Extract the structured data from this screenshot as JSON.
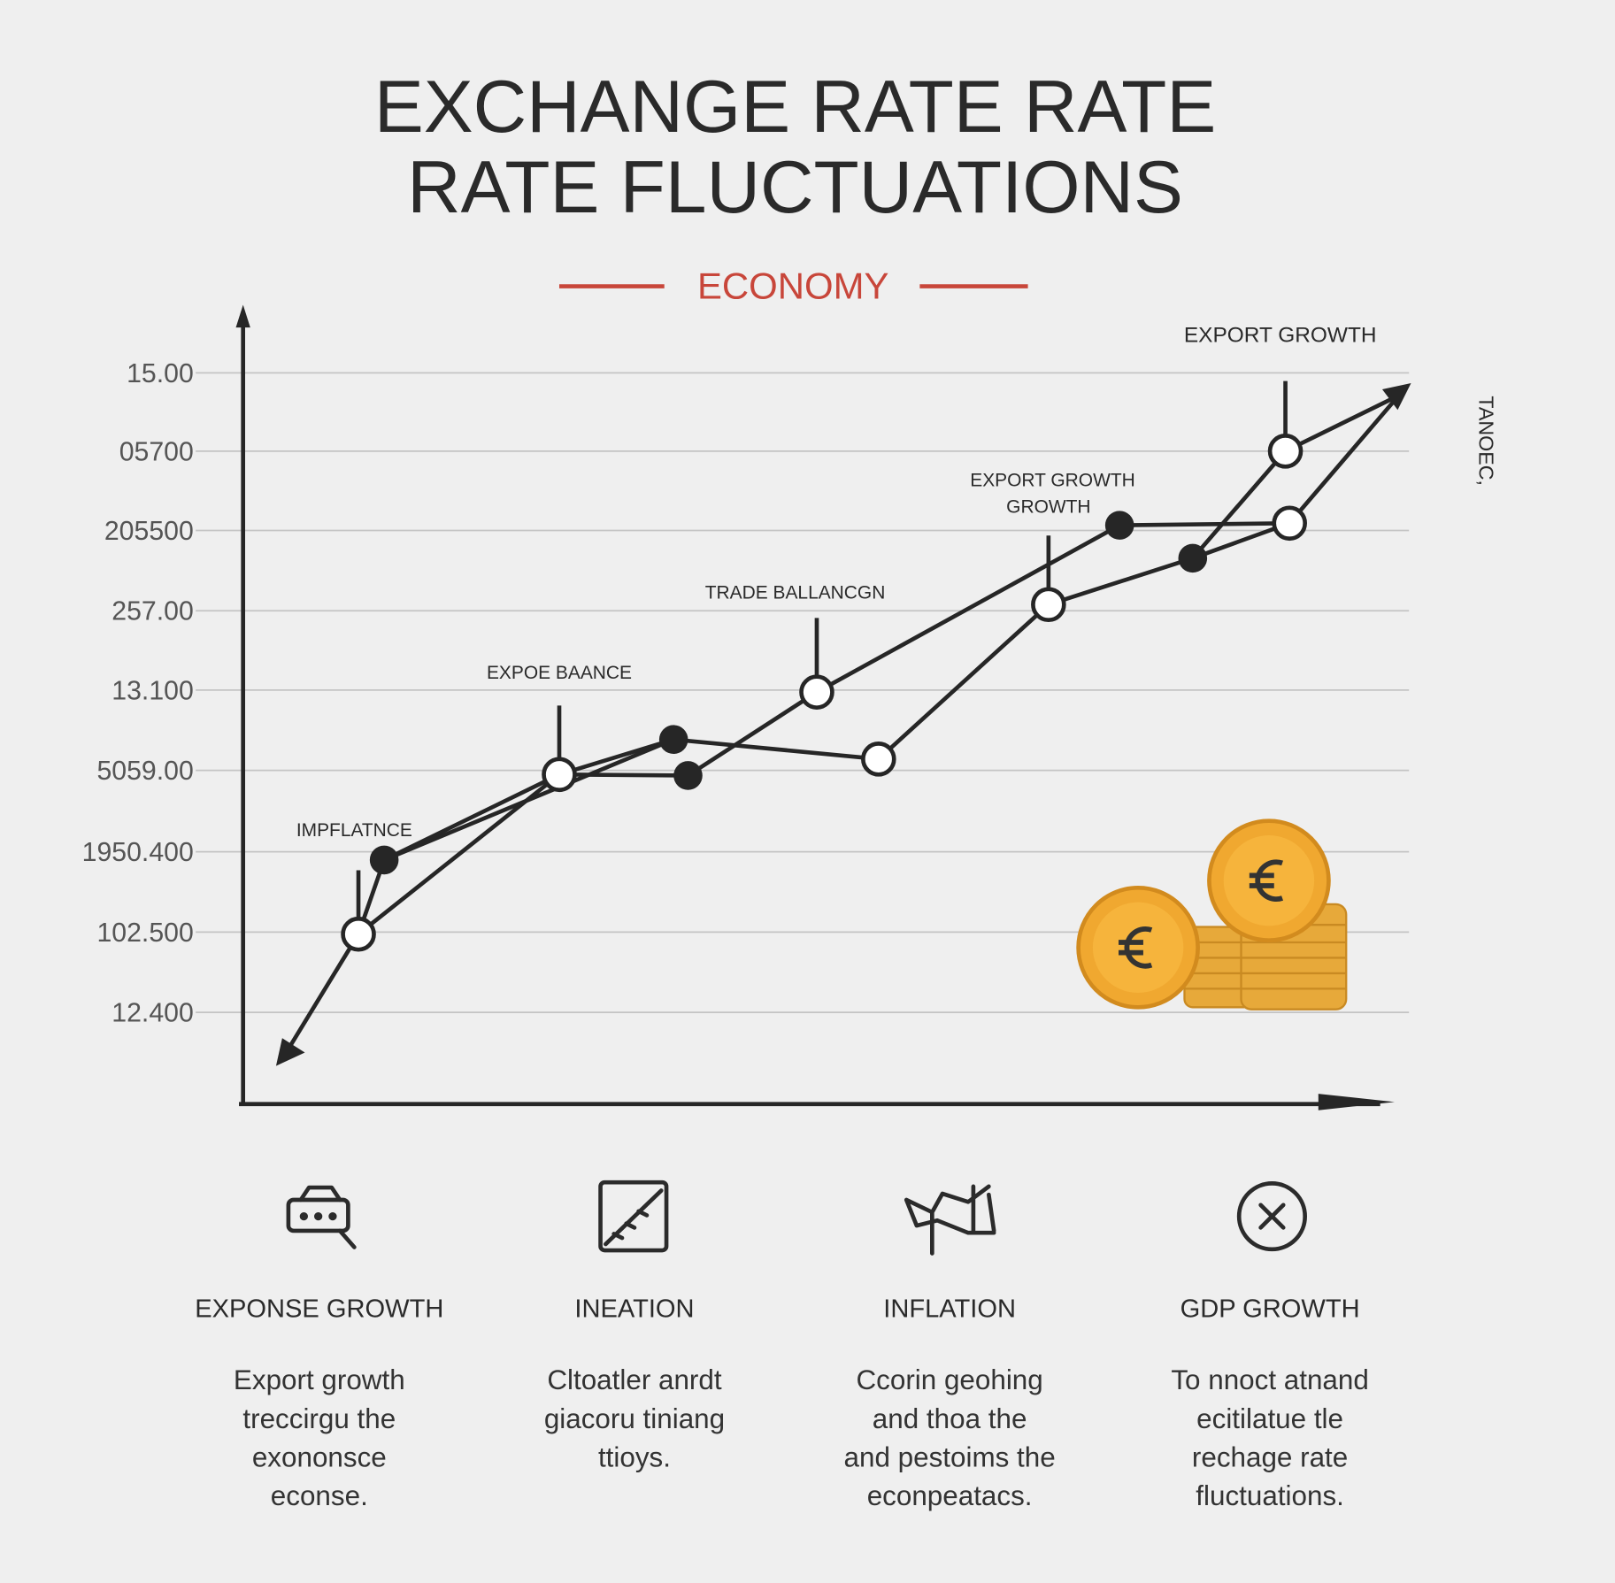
{
  "header": {
    "title_lines": [
      "EXCHANGE RATE RATE",
      "RATE FLUCTUATIONS"
    ],
    "subtitle": "ECONOMY"
  },
  "chart": {
    "y_axis_labels": [
      "15.00",
      "05700",
      "205500",
      "257.00",
      "13.100",
      "5059.00",
      "1950.400",
      "102.500",
      "12.400"
    ],
    "side_label": "TANOEC,",
    "annotations": [
      "IMPFLATNCE",
      "EXPOE BAANCE",
      "TRADE BALLANCGN",
      "EXPORT GROWTH",
      "GROWTH",
      "EXPORT GROWTH"
    ]
  },
  "cards": [
    {
      "heading": "EXPONSE GROWTH",
      "text_lines": [
        "Export growth",
        "treccirgu the",
        "exononsce",
        "econse."
      ]
    },
    {
      "heading": "INEATION",
      "text_lines": [
        "Cltoatler anrdt",
        "giacoru tiniang",
        "ttioys."
      ]
    },
    {
      "heading": "INFLATION",
      "text_lines": [
        "Ccorin geohing",
        "and thoa the",
        "and pestoims the",
        "econpeatacs."
      ]
    },
    {
      "heading": "GDP GROWTH",
      "text_lines": [
        "To nnoct atnand",
        "ecitilatue tle",
        "rechage rate",
        "fluctuations."
      ]
    }
  ]
}
